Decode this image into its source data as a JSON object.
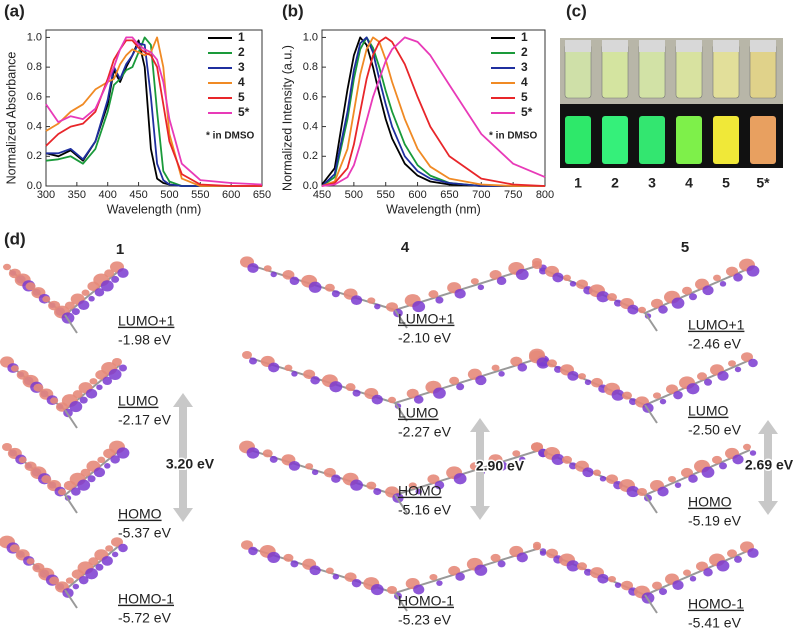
{
  "panel_labels": [
    "(a)",
    "(b)",
    "(c)",
    "(d)"
  ],
  "chart_data": [
    {
      "type": "line",
      "xlabel": "Wavelength (nm)",
      "ylabel": "Normalized Absorbance",
      "note": "* in DMSO",
      "x": [
        300,
        320,
        340,
        360,
        380,
        400,
        410,
        420,
        430,
        440,
        450,
        460,
        470,
        480,
        490,
        500,
        520,
        550,
        600,
        650
      ],
      "xlim": [
        300,
        650
      ],
      "xticks": [
        300,
        350,
        400,
        450,
        500,
        550,
        600,
        650
      ],
      "ylim": [
        0,
        1.05
      ],
      "yticks": [
        {
          "value": 0,
          "label": "0.0"
        },
        0.2,
        0.4,
        0.6,
        0.8,
        {
          "value": 1,
          "label": "1.0"
        }
      ],
      "series": [
        {
          "name": "1",
          "color": "#000000",
          "values": [
            0.22,
            0.2,
            0.24,
            0.17,
            0.3,
            0.55,
            0.78,
            0.7,
            0.8,
            0.88,
            0.98,
            0.8,
            0.25,
            0.05,
            0.02,
            0.01,
            0,
            0,
            0,
            0
          ]
        },
        {
          "name": "2",
          "color": "#1a9a3a",
          "values": [
            0.17,
            0.18,
            0.2,
            0.15,
            0.25,
            0.5,
            0.68,
            0.72,
            0.78,
            0.8,
            0.9,
            1.0,
            0.95,
            0.5,
            0.1,
            0.03,
            0,
            0,
            0,
            0
          ]
        },
        {
          "name": "3",
          "color": "#1f2f9f",
          "values": [
            0.22,
            0.22,
            0.25,
            0.18,
            0.3,
            0.58,
            0.8,
            0.72,
            0.82,
            0.88,
            0.96,
            0.95,
            0.6,
            0.15,
            0.04,
            0.01,
            0,
            0,
            0,
            0
          ]
        },
        {
          "name": "4",
          "color": "#f08a24",
          "values": [
            0.37,
            0.42,
            0.5,
            0.55,
            0.65,
            0.7,
            0.72,
            0.82,
            0.88,
            0.92,
            0.9,
            0.88,
            0.9,
            1.0,
            0.8,
            0.35,
            0.05,
            0,
            0,
            0
          ]
        },
        {
          "name": "5",
          "color": "#e8262a",
          "values": [
            0.27,
            0.35,
            0.4,
            0.42,
            0.5,
            0.72,
            0.85,
            0.92,
            0.98,
            0.98,
            0.93,
            0.9,
            0.88,
            0.8,
            0.55,
            0.3,
            0.08,
            0.01,
            0,
            0
          ]
        },
        {
          "name": "5*",
          "color": "#e83ab8",
          "values": [
            0.55,
            0.43,
            0.47,
            0.45,
            0.52,
            0.7,
            0.8,
            0.92,
            1.0,
            1.0,
            0.95,
            0.92,
            0.9,
            0.85,
            0.7,
            0.45,
            0.15,
            0.04,
            0.02,
            0.01
          ]
        }
      ]
    },
    {
      "type": "line",
      "xlabel": "Wavelength (nm)",
      "ylabel": "Normalized Intensity (a.u.)",
      "note": "* in DMSO",
      "x": [
        450,
        470,
        490,
        500,
        510,
        520,
        530,
        540,
        550,
        560,
        580,
        600,
        620,
        650,
        700,
        750,
        800
      ],
      "xlim": [
        450,
        800
      ],
      "xticks": [
        450,
        500,
        550,
        600,
        650,
        700,
        750,
        800
      ],
      "ylim": [
        0,
        1.05
      ],
      "yticks": [
        {
          "value": 0,
          "label": "0.0"
        },
        0.2,
        0.4,
        0.6,
        0.8,
        {
          "value": 1,
          "label": "1.0"
        }
      ],
      "series": [
        {
          "name": "1",
          "color": "#000000",
          "values": [
            0.01,
            0.12,
            0.65,
            0.88,
            1.0,
            0.95,
            0.8,
            0.62,
            0.45,
            0.32,
            0.15,
            0.07,
            0.03,
            0.01,
            0,
            0,
            0
          ]
        },
        {
          "name": "2",
          "color": "#1a9a3a",
          "values": [
            0,
            0.06,
            0.45,
            0.72,
            0.92,
            1.0,
            0.93,
            0.8,
            0.64,
            0.5,
            0.28,
            0.14,
            0.07,
            0.02,
            0,
            0,
            0
          ]
        },
        {
          "name": "3",
          "color": "#1f2f9f",
          "values": [
            0,
            0.08,
            0.5,
            0.78,
            0.96,
            1.0,
            0.9,
            0.72,
            0.55,
            0.4,
            0.2,
            0.1,
            0.05,
            0.02,
            0,
            0,
            0
          ]
        },
        {
          "name": "4",
          "color": "#f08a24",
          "values": [
            0,
            0.03,
            0.25,
            0.5,
            0.75,
            0.92,
            1.0,
            0.97,
            0.85,
            0.7,
            0.45,
            0.25,
            0.13,
            0.05,
            0.01,
            0,
            0
          ]
        },
        {
          "name": "5",
          "color": "#e8262a",
          "values": [
            0,
            0.02,
            0.12,
            0.28,
            0.5,
            0.72,
            0.88,
            0.97,
            1.0,
            0.97,
            0.82,
            0.6,
            0.4,
            0.2,
            0.05,
            0.01,
            0
          ]
        },
        {
          "name": "5*",
          "color": "#e83ab8",
          "values": [
            0,
            0.01,
            0.06,
            0.14,
            0.28,
            0.44,
            0.6,
            0.72,
            0.84,
            0.92,
            1.0,
            0.97,
            0.88,
            0.68,
            0.35,
            0.15,
            0.06
          ]
        }
      ]
    }
  ],
  "photo": {
    "labels": [
      "1",
      "2",
      "3",
      "4",
      "5",
      "5*"
    ]
  },
  "orbitals": {
    "columns": [
      {
        "title": "1",
        "gap": "3.20 eV",
        "levels": [
          {
            "name": "LUMO+1",
            "energy": "-1.98 eV"
          },
          {
            "name": "LUMO",
            "energy": "-2.17 eV"
          },
          {
            "name": "HOMO",
            "energy": "-5.37 eV"
          },
          {
            "name": "HOMO-1",
            "energy": "-5.72 eV"
          }
        ]
      },
      {
        "title": "4",
        "gap": "2.90 eV",
        "levels": [
          {
            "name": "LUMO+1",
            "energy": "-2.10 eV"
          },
          {
            "name": "LUMO",
            "energy": "-2.27 eV"
          },
          {
            "name": "HOMO",
            "energy": "-5.16 eV"
          },
          {
            "name": "HOMO-1",
            "energy": "-5.23 eV"
          }
        ]
      },
      {
        "title": "5",
        "gap": "2.69 eV",
        "levels": [
          {
            "name": "LUMO+1",
            "energy": "-2.46 eV"
          },
          {
            "name": "LUMO",
            "energy": "-2.50 eV"
          },
          {
            "name": "HOMO",
            "energy": "-5.19 eV"
          },
          {
            "name": "HOMO-1",
            "energy": "-5.41 eV"
          }
        ]
      }
    ]
  }
}
